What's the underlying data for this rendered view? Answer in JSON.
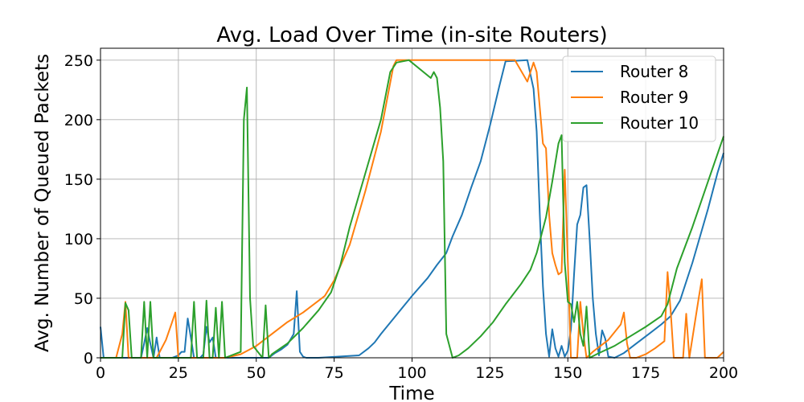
{
  "chart_data": {
    "type": "line",
    "title": "Avg. Load Over Time (in-site Routers)",
    "xlabel": "Time",
    "ylabel": "Avg. Number of Queued Packets",
    "xlim": [
      0,
      200
    ],
    "ylim": [
      0,
      260
    ],
    "xticks": [
      0,
      25,
      50,
      75,
      100,
      125,
      150,
      175,
      200
    ],
    "yticks": [
      0,
      50,
      100,
      150,
      200,
      250
    ],
    "grid": true,
    "legend_position": "top-right",
    "series": [
      {
        "name": "Router 8",
        "color": "#1f77b4",
        "points": [
          [
            0,
            26
          ],
          [
            1,
            0
          ],
          [
            13,
            0
          ],
          [
            14,
            12
          ],
          [
            15,
            25
          ],
          [
            16,
            12
          ],
          [
            17,
            0
          ],
          [
            18,
            17
          ],
          [
            19,
            0
          ],
          [
            23,
            0
          ],
          [
            25,
            2
          ],
          [
            26,
            5
          ],
          [
            27,
            5
          ],
          [
            28,
            33
          ],
          [
            29,
            17
          ],
          [
            30,
            0
          ],
          [
            32,
            0
          ],
          [
            33,
            3
          ],
          [
            34,
            26
          ],
          [
            35,
            13
          ],
          [
            36,
            17
          ],
          [
            37,
            0
          ],
          [
            39,
            0
          ],
          [
            54,
            0
          ],
          [
            56,
            4
          ],
          [
            58,
            7
          ],
          [
            60,
            11
          ],
          [
            62,
            20
          ],
          [
            63,
            56
          ],
          [
            64,
            5
          ],
          [
            65,
            1
          ],
          [
            66,
            0
          ],
          [
            70,
            0
          ],
          [
            83,
            2
          ],
          [
            86,
            8
          ],
          [
            88,
            13
          ],
          [
            90,
            20
          ],
          [
            95,
            36
          ],
          [
            100,
            52
          ],
          [
            105,
            67
          ],
          [
            108,
            78
          ],
          [
            111,
            88
          ],
          [
            113,
            102
          ],
          [
            116,
            120
          ],
          [
            119,
            143
          ],
          [
            122,
            165
          ],
          [
            125,
            195
          ],
          [
            128,
            228
          ],
          [
            130,
            249
          ],
          [
            137,
            250
          ],
          [
            139,
            226
          ],
          [
            140,
            190
          ],
          [
            141,
            120
          ],
          [
            142,
            60
          ],
          [
            143,
            20
          ],
          [
            144,
            1
          ],
          [
            145,
            24
          ],
          [
            146,
            8
          ],
          [
            147,
            1
          ],
          [
            148,
            10
          ],
          [
            149,
            1
          ],
          [
            150,
            6
          ],
          [
            151,
            24
          ],
          [
            152,
            70
          ],
          [
            153,
            112
          ],
          [
            154,
            120
          ],
          [
            155,
            143
          ],
          [
            156,
            145
          ],
          [
            157,
            100
          ],
          [
            158,
            50
          ],
          [
            159,
            20
          ],
          [
            160,
            2
          ],
          [
            161,
            23
          ],
          [
            162,
            16
          ],
          [
            163,
            1
          ],
          [
            165,
            0
          ],
          [
            168,
            4
          ],
          [
            172,
            12
          ],
          [
            176,
            20
          ],
          [
            180,
            28
          ],
          [
            183,
            35
          ],
          [
            186,
            48
          ],
          [
            190,
            80
          ],
          [
            195,
            125
          ],
          [
            198,
            155
          ],
          [
            200,
            172
          ]
        ]
      },
      {
        "name": "Router 9",
        "color": "#ff7f0e",
        "points": [
          [
            0,
            0
          ],
          [
            5,
            0
          ],
          [
            7,
            20
          ],
          [
            8,
            47
          ],
          [
            9,
            0
          ],
          [
            18,
            0
          ],
          [
            21,
            15
          ],
          [
            23,
            30
          ],
          [
            24,
            38
          ],
          [
            25,
            0
          ],
          [
            40,
            0
          ],
          [
            45,
            3
          ],
          [
            50,
            10
          ],
          [
            55,
            20
          ],
          [
            60,
            30
          ],
          [
            65,
            38
          ],
          [
            70,
            48
          ],
          [
            72,
            52
          ],
          [
            75,
            65
          ],
          [
            80,
            95
          ],
          [
            85,
            140
          ],
          [
            90,
            190
          ],
          [
            94,
            245
          ],
          [
            95,
            250
          ],
          [
            133,
            250
          ],
          [
            137,
            232
          ],
          [
            139,
            248
          ],
          [
            140,
            240
          ],
          [
            141,
            210
          ],
          [
            142,
            180
          ],
          [
            143,
            176
          ],
          [
            144,
            120
          ],
          [
            145,
            88
          ],
          [
            146,
            78
          ],
          [
            147,
            70
          ],
          [
            148,
            72
          ],
          [
            149,
            158
          ],
          [
            150,
            80
          ],
          [
            151,
            0
          ],
          [
            153,
            0
          ],
          [
            154,
            47
          ],
          [
            155,
            20
          ],
          [
            156,
            0
          ],
          [
            158,
            5
          ],
          [
            163,
            15
          ],
          [
            167,
            28
          ],
          [
            168,
            38
          ],
          [
            169,
            12
          ],
          [
            170,
            0
          ],
          [
            172,
            0
          ],
          [
            175,
            3
          ],
          [
            178,
            8
          ],
          [
            181,
            14
          ],
          [
            182,
            72
          ],
          [
            183,
            40
          ],
          [
            184,
            0
          ],
          [
            187,
            0
          ],
          [
            188,
            37
          ],
          [
            189,
            0
          ],
          [
            192,
            50
          ],
          [
            193,
            66
          ],
          [
            194,
            0
          ],
          [
            198,
            0
          ],
          [
            200,
            5
          ]
        ]
      },
      {
        "name": "Router 10",
        "color": "#2ca02c",
        "points": [
          [
            0,
            0
          ],
          [
            7,
            0
          ],
          [
            8,
            46
          ],
          [
            9,
            40
          ],
          [
            10,
            0
          ],
          [
            13,
            0
          ],
          [
            14,
            47
          ],
          [
            15,
            0
          ],
          [
            16,
            47
          ],
          [
            17,
            0
          ],
          [
            20,
            0
          ],
          [
            27,
            0
          ],
          [
            29,
            0
          ],
          [
            30,
            47
          ],
          [
            31,
            0
          ],
          [
            33,
            0
          ],
          [
            34,
            48
          ],
          [
            35,
            0
          ],
          [
            36,
            0
          ],
          [
            37,
            42
          ],
          [
            38,
            0
          ],
          [
            39,
            47
          ],
          [
            40,
            0
          ],
          [
            45,
            5
          ],
          [
            46,
            200
          ],
          [
            47,
            227
          ],
          [
            48,
            50
          ],
          [
            49,
            10
          ],
          [
            52,
            0
          ],
          [
            53,
            44
          ],
          [
            54,
            0
          ],
          [
            55,
            3
          ],
          [
            60,
            12
          ],
          [
            65,
            25
          ],
          [
            70,
            40
          ],
          [
            74,
            55
          ],
          [
            77,
            78
          ],
          [
            80,
            110
          ],
          [
            85,
            155
          ],
          [
            90,
            200
          ],
          [
            93,
            240
          ],
          [
            95,
            248
          ],
          [
            99,
            250
          ],
          [
            106,
            235
          ],
          [
            107,
            240
          ],
          [
            108,
            235
          ],
          [
            109,
            210
          ],
          [
            110,
            165
          ],
          [
            111,
            20
          ],
          [
            112,
            10
          ],
          [
            113,
            0
          ],
          [
            115,
            2
          ],
          [
            118,
            8
          ],
          [
            122,
            18
          ],
          [
            126,
            30
          ],
          [
            130,
            45
          ],
          [
            135,
            62
          ],
          [
            138,
            74
          ],
          [
            140,
            88
          ],
          [
            143,
            118
          ],
          [
            145,
            148
          ],
          [
            147,
            180
          ],
          [
            148,
            187
          ],
          [
            149,
            80
          ],
          [
            150,
            47
          ],
          [
            151,
            45
          ],
          [
            152,
            30
          ],
          [
            153,
            47
          ],
          [
            154,
            20
          ],
          [
            155,
            10
          ],
          [
            156,
            43
          ],
          [
            157,
            0
          ],
          [
            160,
            4
          ],
          [
            165,
            10
          ],
          [
            170,
            18
          ],
          [
            175,
            26
          ],
          [
            180,
            35
          ],
          [
            182,
            45
          ],
          [
            185,
            75
          ],
          [
            190,
            110
          ],
          [
            195,
            148
          ],
          [
            200,
            186
          ]
        ]
      }
    ]
  }
}
